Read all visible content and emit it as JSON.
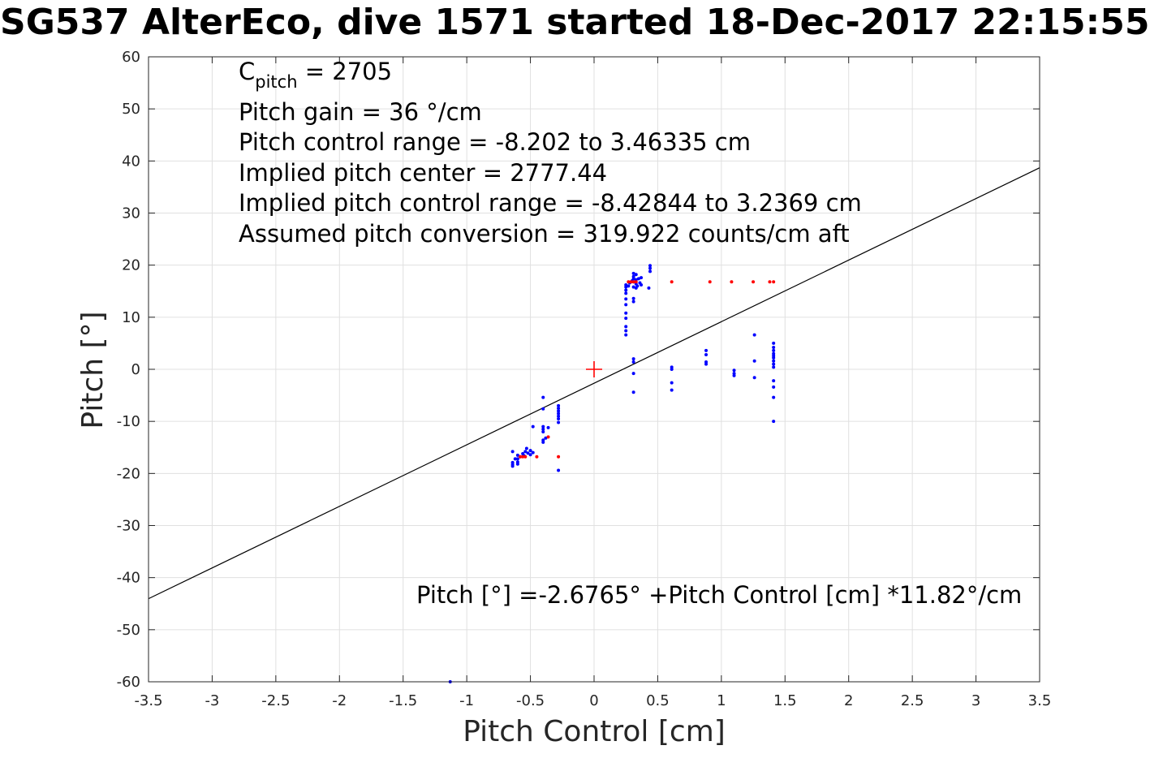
{
  "chart_data": {
    "type": "scatter",
    "title": "SG537 AlterEco, dive 1571 started 18-Dec-2017 22:15:55",
    "xlabel": "Pitch Control [cm]",
    "ylabel": "Pitch [°]",
    "xlim": [
      -3.5,
      3.5
    ],
    "ylim": [
      -60,
      60
    ],
    "xticks": [
      -3.5,
      -3,
      -2.5,
      -2,
      -1.5,
      -1,
      -0.5,
      0,
      0.5,
      1,
      1.5,
      2,
      2.5,
      3,
      3.5
    ],
    "yticks": [
      -60,
      -50,
      -40,
      -30,
      -20,
      -10,
      0,
      10,
      20,
      30,
      40,
      50,
      60
    ],
    "grid": true,
    "annotations": {
      "c_pitch_label": "C",
      "c_pitch_sub": "pitch",
      "c_pitch_value": " = 2705",
      "lines": [
        "Pitch gain = 36 °/cm",
        "Pitch control range = -8.202 to 3.46335 cm",
        "Implied pitch center = 2777.44",
        "Implied pitch control range = -8.42844 to 3.2369 cm",
        "Assumed pitch conversion = 319.922 counts/cm aft"
      ],
      "equation": "Pitch [°] =-2.6765° +Pitch Control [cm] *11.82°/cm"
    },
    "fit_line": {
      "intercept": -2.6765,
      "slope": 11.82,
      "color": "#000000"
    },
    "center_marker": {
      "x": 0,
      "y": 0,
      "color": "#ff0000"
    },
    "series": [
      {
        "color": "#0000ff",
        "points": [
          [
            -0.64,
            -15.8
          ],
          [
            -0.64,
            -17.9
          ],
          [
            -0.64,
            -18.3
          ],
          [
            -0.64,
            -18.6
          ],
          [
            -0.62,
            -17.2
          ],
          [
            -0.6,
            -16.5
          ],
          [
            -0.6,
            -17.2
          ],
          [
            -0.6,
            -17.8
          ],
          [
            -0.6,
            -18.2
          ],
          [
            -0.58,
            -16.8
          ],
          [
            -0.56,
            -16.2
          ],
          [
            -0.55,
            -16.6
          ],
          [
            -0.54,
            -15.8
          ],
          [
            -0.53,
            -15.2
          ],
          [
            -0.52,
            -16.1
          ],
          [
            -0.5,
            -15.6
          ],
          [
            -0.5,
            -16.4
          ],
          [
            -0.48,
            -11.0
          ],
          [
            -0.48,
            -16.0
          ],
          [
            -0.4,
            -5.4
          ],
          [
            -0.4,
            -7.6
          ],
          [
            -0.4,
            -11.0
          ],
          [
            -0.4,
            -11.5
          ],
          [
            -0.4,
            -12.0
          ],
          [
            -0.4,
            -13.6
          ],
          [
            -0.4,
            -14.0
          ],
          [
            -0.38,
            -13.2
          ],
          [
            -0.36,
            -11.2
          ],
          [
            -0.28,
            -7.0
          ],
          [
            -0.28,
            -7.5
          ],
          [
            -0.28,
            -8.0
          ],
          [
            -0.28,
            -8.5
          ],
          [
            -0.28,
            -9.0
          ],
          [
            -0.28,
            -9.5
          ],
          [
            -0.28,
            -10.2
          ],
          [
            -0.28,
            -19.4
          ],
          [
            0.25,
            6.6
          ],
          [
            0.25,
            7.4
          ],
          [
            0.25,
            8.2
          ],
          [
            0.25,
            9.8
          ],
          [
            0.25,
            10.8
          ],
          [
            0.25,
            12.4
          ],
          [
            0.25,
            13.5
          ],
          [
            0.25,
            14.6
          ],
          [
            0.25,
            15.2
          ],
          [
            0.25,
            15.8
          ],
          [
            0.25,
            16.2
          ],
          [
            0.27,
            16.0
          ],
          [
            0.28,
            16.6
          ],
          [
            0.3,
            17.0
          ],
          [
            0.31,
            13.0
          ],
          [
            0.31,
            13.6
          ],
          [
            0.31,
            15.8
          ],
          [
            0.31,
            16.8
          ],
          [
            0.31,
            17.4
          ],
          [
            0.31,
            17.8
          ],
          [
            0.31,
            18.4
          ],
          [
            0.31,
            2.0
          ],
          [
            0.31,
            1.4
          ],
          [
            0.31,
            -0.8
          ],
          [
            0.31,
            -4.4
          ],
          [
            0.33,
            15.6
          ],
          [
            0.33,
            16.4
          ],
          [
            0.33,
            17.2
          ],
          [
            0.33,
            18.2
          ],
          [
            0.34,
            16.0
          ],
          [
            0.35,
            17.4
          ],
          [
            0.36,
            16.6
          ],
          [
            0.37,
            17.6
          ],
          [
            0.37,
            16.2
          ],
          [
            0.43,
            15.6
          ],
          [
            0.44,
            18.8
          ],
          [
            0.44,
            19.4
          ],
          [
            0.44,
            19.9
          ],
          [
            0.61,
            0.4
          ],
          [
            0.61,
            0.0
          ],
          [
            0.61,
            -2.6
          ],
          [
            0.61,
            -4.0
          ],
          [
            0.88,
            3.6
          ],
          [
            0.88,
            2.8
          ],
          [
            0.88,
            1.4
          ],
          [
            0.88,
            1.0
          ],
          [
            1.1,
            -0.2
          ],
          [
            1.1,
            -0.8
          ],
          [
            1.1,
            -1.2
          ],
          [
            1.26,
            6.6
          ],
          [
            1.26,
            1.6
          ],
          [
            1.26,
            -1.6
          ],
          [
            1.41,
            5.0
          ],
          [
            1.41,
            4.2
          ],
          [
            1.41,
            3.6
          ],
          [
            1.41,
            3.0
          ],
          [
            1.41,
            2.6
          ],
          [
            1.41,
            2.2
          ],
          [
            1.41,
            1.6
          ],
          [
            1.41,
            1.0
          ],
          [
            1.41,
            0.4
          ],
          [
            1.41,
            -2.2
          ],
          [
            1.41,
            -3.4
          ],
          [
            1.41,
            -5.4
          ],
          [
            1.41,
            -10.0
          ],
          [
            -1.13,
            -60.0
          ]
        ]
      },
      {
        "color": "#ff0000",
        "points": [
          [
            -0.58,
            -16.8
          ],
          [
            -0.56,
            -16.8
          ],
          [
            -0.54,
            -16.8
          ],
          [
            -0.45,
            -16.8
          ],
          [
            -0.36,
            -13.0
          ],
          [
            -0.28,
            -16.8
          ],
          [
            0.27,
            16.8
          ],
          [
            0.29,
            16.8
          ],
          [
            0.31,
            16.8
          ],
          [
            0.33,
            16.8
          ],
          [
            0.61,
            16.8
          ],
          [
            0.91,
            16.8
          ],
          [
            1.08,
            16.8
          ],
          [
            1.25,
            16.8
          ],
          [
            1.38,
            16.8
          ],
          [
            1.41,
            16.8
          ]
        ]
      }
    ]
  }
}
